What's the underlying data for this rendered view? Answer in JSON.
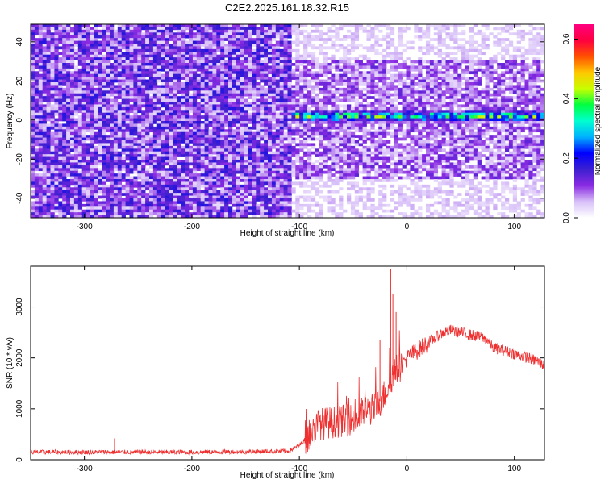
{
  "figure_title": "C2E2.2025.161.18.32.R15",
  "chart_data": [
    {
      "type": "heatmap",
      "title": "C2E2.2025.161.18.32.R15",
      "xlabel": "Height of straight line (km)",
      "ylabel": "Frequency (Hz)",
      "xlim": [
        -350,
        128
      ],
      "ylim": [
        -50,
        49
      ],
      "xticks": [
        -300,
        -200,
        -100,
        0,
        100
      ],
      "yticks": [
        -40,
        -20,
        0,
        20,
        40
      ],
      "colorbar": {
        "label": "Normalized spectral amplitude",
        "range": [
          0.0,
          0.65
        ],
        "ticks": [
          0.0,
          0.2,
          0.4,
          0.6
        ],
        "colors": [
          "#ffffff",
          "#d8c0f8",
          "#8a2be2",
          "#3c1fd0",
          "#0000ff",
          "#00b0ff",
          "#00ffd0",
          "#00ff40",
          "#c8ff00",
          "#ffc800",
          "#ff5000",
          "#ff0040",
          "#ff0080"
        ]
      },
      "regions": [
        {
          "x_range": [
            -350,
            -108
          ],
          "description": "uniform broadband noise",
          "typical_amplitude": 0.1
        },
        {
          "x_range": [
            -108,
            128
          ],
          "description": "noise with concentrated signal band",
          "typical_amplitude": 0.07
        }
      ],
      "signal_band": {
        "x_range": [
          -108,
          128
        ],
        "center_frequency": 2,
        "half_width": 4,
        "peak_amplitude": 0.45
      }
    },
    {
      "type": "line",
      "xlabel": "Height of straight line (km)",
      "ylabel": "SNR (10 * v/v)",
      "xlim": [
        -350,
        128
      ],
      "ylim": [
        0,
        3800
      ],
      "xticks": [
        -300,
        -200,
        -100,
        0,
        100
      ],
      "yticks": [
        0,
        1000,
        2000,
        3000
      ],
      "color": "#ee3030",
      "series": [
        {
          "name": "SNR",
          "x": [
            -350,
            -300,
            -250,
            -200,
            -150,
            -110,
            -100,
            -90,
            -82,
            -75,
            -60,
            -45,
            -40,
            -30,
            -20,
            -15,
            -10,
            0,
            10,
            20,
            30,
            40,
            50,
            60,
            70,
            75,
            80,
            90,
            100,
            110,
            120,
            128
          ],
          "values": [
            150,
            150,
            150,
            150,
            160,
            170,
            280,
            500,
            700,
            720,
            760,
            820,
            950,
            1000,
            1300,
            1600,
            1750,
            2000,
            2150,
            2300,
            2450,
            2550,
            2500,
            2450,
            2400,
            2350,
            2200,
            2150,
            2080,
            2020,
            1950,
            1850
          ]
        }
      ],
      "spikes": [
        {
          "x": -272,
          "y": 420
        },
        {
          "x": -25,
          "y": 2350
        },
        {
          "x": -15,
          "y": 3750
        },
        {
          "x": -13,
          "y": 3250
        },
        {
          "x": -10,
          "y": 2900
        }
      ]
    }
  ]
}
